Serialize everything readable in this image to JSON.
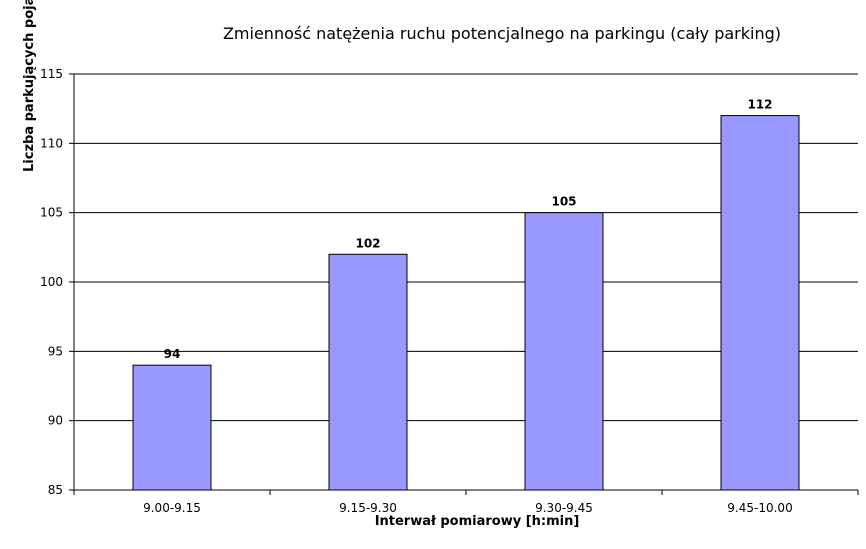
{
  "chart_data": {
    "type": "bar",
    "title": "Zmienność natężenia ruchu potencjalnego na parkingu (cały parking)",
    "xlabel": "Interwał pomiarowy [h:min]",
    "ylabel": "Liczba parkujących pojazdów",
    "categories": [
      "9.00-9.15",
      "9.15-9.30",
      "9.30-9.45",
      "9.45-10.00"
    ],
    "values": [
      94,
      102,
      105,
      112
    ],
    "data_labels": [
      "94",
      "102",
      "105",
      "112"
    ],
    "ylim": [
      85,
      115
    ],
    "yticks": [
      85,
      90,
      95,
      100,
      105,
      110,
      115
    ],
    "ytick_labels": [
      "85",
      "90",
      "95",
      "100",
      "105",
      "110",
      "115"
    ],
    "grid": true,
    "legend": "none",
    "colors": {
      "bar_fill": "#9999ff",
      "bar_stroke": "#000000",
      "grid": "#000000",
      "axis": "#000000"
    }
  }
}
